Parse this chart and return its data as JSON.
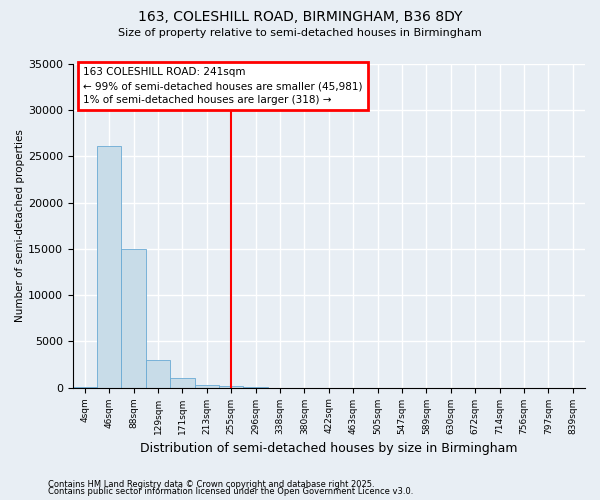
{
  "title1": "163, COLESHILL ROAD, BIRMINGHAM, B36 8DY",
  "title2": "Size of property relative to semi-detached houses in Birmingham",
  "xlabel": "Distribution of semi-detached houses by size in Birmingham",
  "ylabel": "Number of semi-detached properties",
  "footnote1": "Contains HM Land Registry data © Crown copyright and database right 2025.",
  "footnote2": "Contains public sector information licensed under the Open Government Licence v3.0.",
  "annotation_title": "163 COLESHILL ROAD: 241sqm",
  "annotation_line1": "← 99% of semi-detached houses are smaller (45,981)",
  "annotation_line2": "1% of semi-detached houses are larger (318) →",
  "vline_color": "red",
  "bar_color": "#c8dce8",
  "bar_edge_color": "#6aaad4",
  "background_color": "#e8eef4",
  "ylim": [
    0,
    35000
  ],
  "yticks": [
    0,
    5000,
    10000,
    15000,
    20000,
    25000,
    30000,
    35000
  ],
  "bin_labels": [
    "4sqm",
    "46sqm",
    "88sqm",
    "129sqm",
    "171sqm",
    "213sqm",
    "255sqm",
    "296sqm",
    "338sqm",
    "380sqm",
    "422sqm",
    "463sqm",
    "505sqm",
    "547sqm",
    "589sqm",
    "630sqm",
    "672sqm",
    "714sqm",
    "756sqm",
    "797sqm",
    "839sqm"
  ],
  "bar_heights": [
    60,
    26100,
    15000,
    3000,
    1000,
    300,
    120,
    15,
    5,
    2,
    1,
    0,
    0,
    0,
    0,
    0,
    0,
    0,
    0,
    0,
    0
  ],
  "vline_index": 6,
  "annotation_xleft": 0.12,
  "annotation_xright": 0.78,
  "annotation_ytop": 0.97,
  "annotation_ybottom": 0.77
}
